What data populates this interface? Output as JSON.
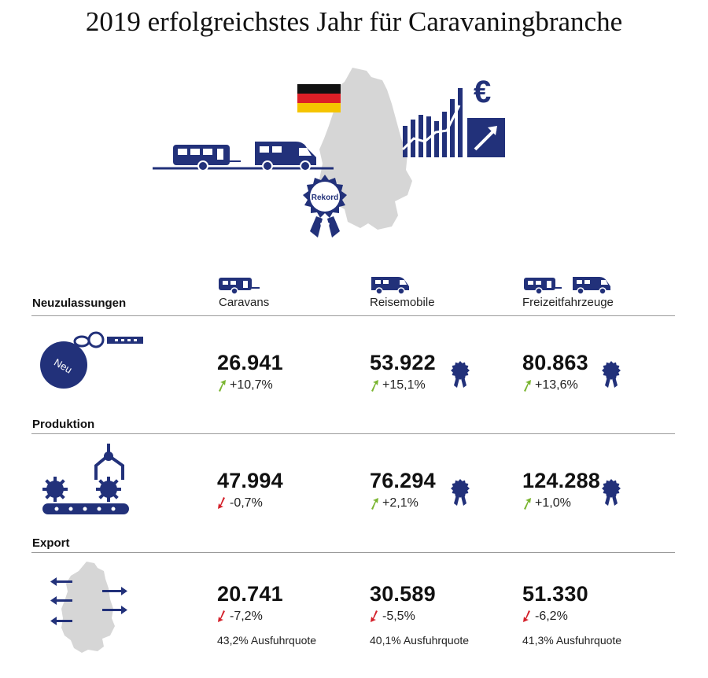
{
  "title": "2019 erfolgreichstes Jahr für Caravaningbranche",
  "hero": {
    "badge": "Rekord",
    "currency": "€"
  },
  "colors": {
    "navy": "#22317a",
    "green": "#7ab530",
    "red": "#d4202a",
    "map_gray": "#d6d6d6",
    "rule": "#9a9a9a"
  },
  "columns": [
    "Caravans",
    "Reisemobile",
    "Freizeitfahrzeuge"
  ],
  "sections": [
    {
      "label": "Neuzulassungen",
      "icon": "key-tag-icon",
      "icon_text": "Neu",
      "values": [
        {
          "value": "26.941",
          "change": "+10,7%",
          "trend": "up",
          "record": false
        },
        {
          "value": "53.922",
          "change": "+15,1%",
          "trend": "up",
          "record": true
        },
        {
          "value": "80.863",
          "change": "+13,6%",
          "trend": "up",
          "record": true
        }
      ]
    },
    {
      "label": "Produktion",
      "icon": "conveyor-belt-icon",
      "values": [
        {
          "value": "47.994",
          "change": "-0,7%",
          "trend": "down",
          "record": false
        },
        {
          "value": "76.294",
          "change": "+2,1%",
          "trend": "up",
          "record": true
        },
        {
          "value": "124.288",
          "change": "+1,0%",
          "trend": "up",
          "record": true
        }
      ]
    },
    {
      "label": "Export",
      "icon": "export-map-icon",
      "values": [
        {
          "value": "20.741",
          "change": "-7,2%",
          "trend": "down",
          "record": false,
          "quote": "43,2% Ausfuhrquote"
        },
        {
          "value": "30.589",
          "change": "-5,5%",
          "trend": "down",
          "record": false,
          "quote": "40,1% Ausfuhrquote"
        },
        {
          "value": "51.330",
          "change": "-6,2%",
          "trend": "down",
          "record": false,
          "quote": "41,3% Ausfuhrquote"
        }
      ]
    }
  ]
}
